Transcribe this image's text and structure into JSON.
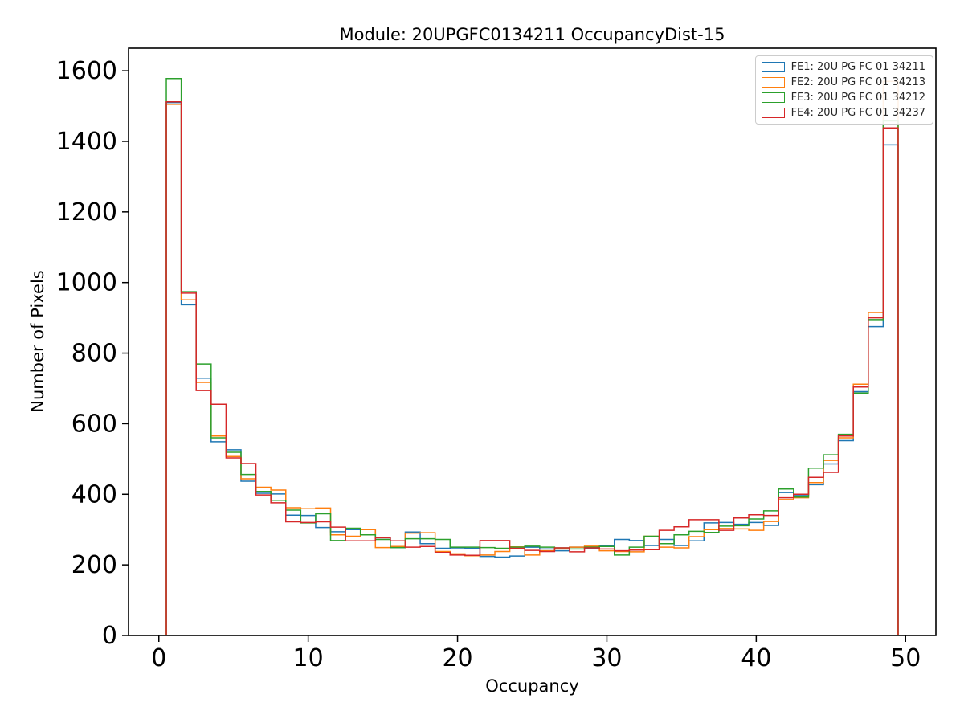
{
  "figure": {
    "title": "Module: 20UPGFC0134211 OccupancyDist-15",
    "xlabel": "Occupancy",
    "ylabel": "Number of Pixels"
  },
  "legend": {
    "position": "upper right",
    "entries": [
      {
        "label": "FE1: 20U PG FC 01 34211",
        "color": "#1f77b4"
      },
      {
        "label": "FE2: 20U PG FC 01 34213",
        "color": "#ff7f0e"
      },
      {
        "label": "FE3: 20U PG FC 01 34212",
        "color": "#2ca02c"
      },
      {
        "label": "FE4: 20U PG FC 01 34237",
        "color": "#d62728"
      }
    ]
  },
  "chart_data": {
    "type": "step-histogram",
    "title": "Module: 20UPGFC0134211 OccupancyDist-15",
    "xlabel": "Occupancy",
    "ylabel": "Number of Pixels",
    "grid": false,
    "legend_position": "upper right",
    "xlim": [
      -2.03,
      52.03
    ],
    "ylim": [
      0,
      1664
    ],
    "xticks": [
      0,
      10,
      20,
      30,
      40,
      50
    ],
    "yticks": [
      0,
      200,
      400,
      600,
      800,
      1000,
      1200,
      1400,
      1600
    ],
    "bin_width": 1,
    "bin_start": 0.5,
    "bin_end": 49.5,
    "bin_centers": [
      1,
      2,
      3,
      4,
      5,
      6,
      7,
      8,
      9,
      10,
      11,
      12,
      13,
      14,
      15,
      16,
      17,
      18,
      19,
      20,
      21,
      22,
      23,
      24,
      25,
      26,
      27,
      28,
      29,
      30,
      31,
      32,
      33,
      34,
      35,
      36,
      37,
      38,
      39,
      40,
      41,
      42,
      43,
      44,
      45,
      46,
      47,
      48,
      49
    ],
    "series": [
      {
        "name": "FE1: 20U PG FC 01 34211",
        "color": "#1f77b4",
        "values": [
          1510,
          937,
          729,
          549,
          526,
          437,
          403,
          401,
          341,
          340,
          306,
          294,
          300,
          300,
          277,
          249,
          293,
          260,
          247,
          248,
          247,
          224,
          222,
          225,
          250,
          245,
          240,
          250,
          247,
          255,
          272,
          269,
          255,
          272,
          255,
          268,
          319,
          320,
          315,
          320,
          312,
          405,
          398,
          427,
          486,
          552,
          691,
          875,
          1390
        ]
      },
      {
        "name": "FE2: 20U PG FC 01 34213",
        "color": "#ff7f0e",
        "values": [
          1505,
          951,
          717,
          565,
          507,
          444,
          420,
          412,
          362,
          359,
          361,
          285,
          281,
          300,
          249,
          252,
          290,
          291,
          238,
          229,
          226,
          228,
          238,
          251,
          228,
          240,
          245,
          250,
          253,
          240,
          238,
          237,
          281,
          250,
          248,
          280,
          300,
          303,
          302,
          298,
          323,
          385,
          390,
          433,
          496,
          560,
          712,
          915,
          1570
        ]
      },
      {
        "name": "FE3: 20U PG FC 01 34212",
        "color": "#2ca02c",
        "values": [
          1578,
          974,
          769,
          560,
          519,
          456,
          408,
          383,
          355,
          319,
          345,
          269,
          304,
          285,
          272,
          249,
          274,
          274,
          272,
          250,
          250,
          249,
          247,
          250,
          253,
          250,
          248,
          245,
          250,
          252,
          228,
          250,
          281,
          260,
          285,
          295,
          292,
          310,
          311,
          330,
          353,
          415,
          392,
          474,
          512,
          570,
          687,
          895,
          1458
        ]
      },
      {
        "name": "FE4: 20U PG FC 01 34237",
        "color": "#d62728",
        "values": [
          1512,
          970,
          694,
          655,
          503,
          487,
          398,
          376,
          322,
          320,
          322,
          307,
          268,
          268,
          277,
          268,
          250,
          252,
          235,
          228,
          227,
          269,
          269,
          247,
          241,
          238,
          248,
          237,
          248,
          245,
          240,
          242,
          243,
          298,
          308,
          328,
          328,
          298,
          333,
          342,
          340,
          390,
          400,
          448,
          462,
          565,
          704,
          900,
          1438
        ]
      }
    ]
  }
}
